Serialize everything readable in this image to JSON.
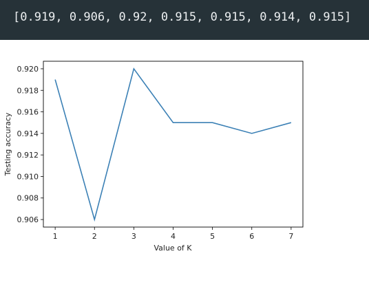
{
  "output": {
    "text": "[0.919, 0.906, 0.92, 0.915, 0.915, 0.914, 0.915]"
  },
  "chart_data": {
    "type": "line",
    "xlabel": "Value of K",
    "ylabel": "Testing accuracy",
    "x": [
      1,
      2,
      3,
      4,
      5,
      6,
      7
    ],
    "series": [
      {
        "values": [
          0.919,
          0.906,
          0.92,
          0.915,
          0.915,
          0.914,
          0.915
        ],
        "color": "#3b80b5"
      }
    ],
    "xticks": [
      1,
      2,
      3,
      4,
      5,
      6,
      7
    ],
    "yticks": [
      0.906,
      0.908,
      0.91,
      0.912,
      0.914,
      0.916,
      0.918,
      0.92
    ],
    "ytick_labels": [
      "0.906",
      "0.908",
      "0.910",
      "0.912",
      "0.914",
      "0.916",
      "0.918",
      "0.920"
    ],
    "xlim": [
      0.7,
      7.3
    ],
    "ylim": [
      0.9053,
      0.9207
    ],
    "grid": false
  }
}
